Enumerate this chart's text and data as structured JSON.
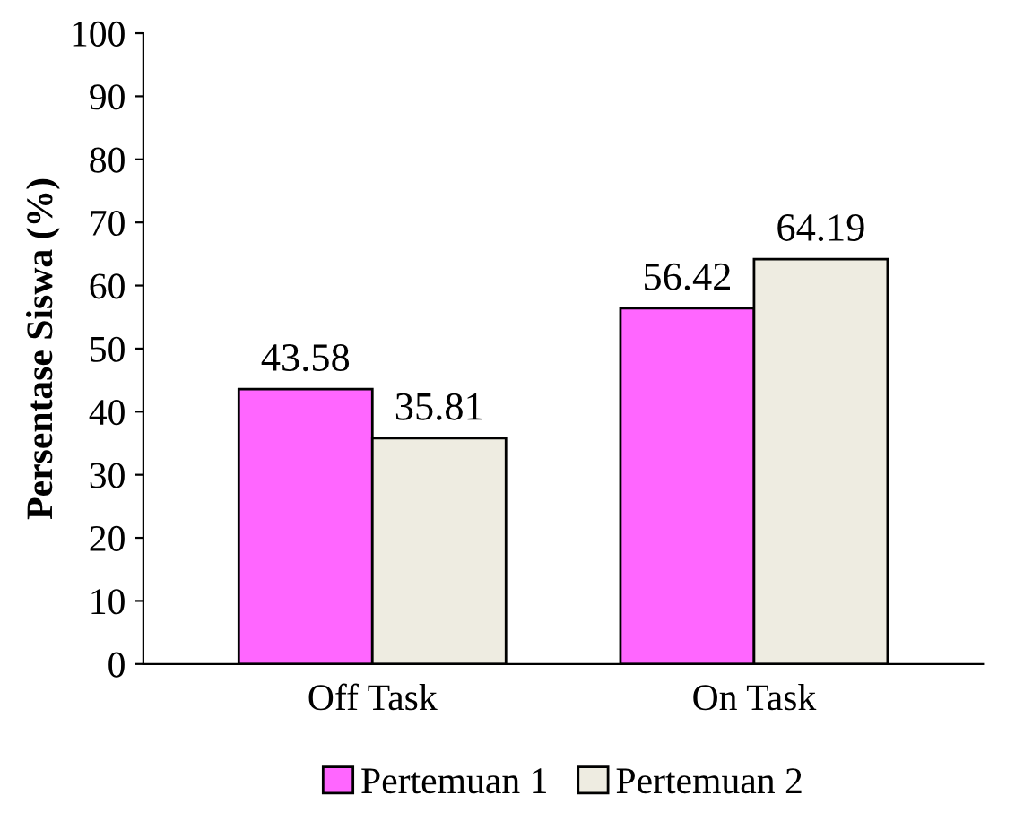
{
  "chart_data": {
    "type": "bar",
    "ylabel": "Persentase Siswa (%)",
    "categories": [
      "Off Task",
      "On Task"
    ],
    "series": [
      {
        "name": "Pertemuan 1",
        "color": "#ff66ff",
        "values": [
          43.58,
          56.42
        ]
      },
      {
        "name": "Pertemuan 2",
        "color": "#eeece1",
        "values": [
          35.81,
          64.19
        ]
      }
    ],
    "ylim": [
      0,
      100
    ],
    "yticks": [
      0,
      10,
      20,
      30,
      40,
      50,
      60,
      70,
      80,
      90,
      100
    ],
    "grid": false,
    "legend": "bottom",
    "data_labels": true
  }
}
